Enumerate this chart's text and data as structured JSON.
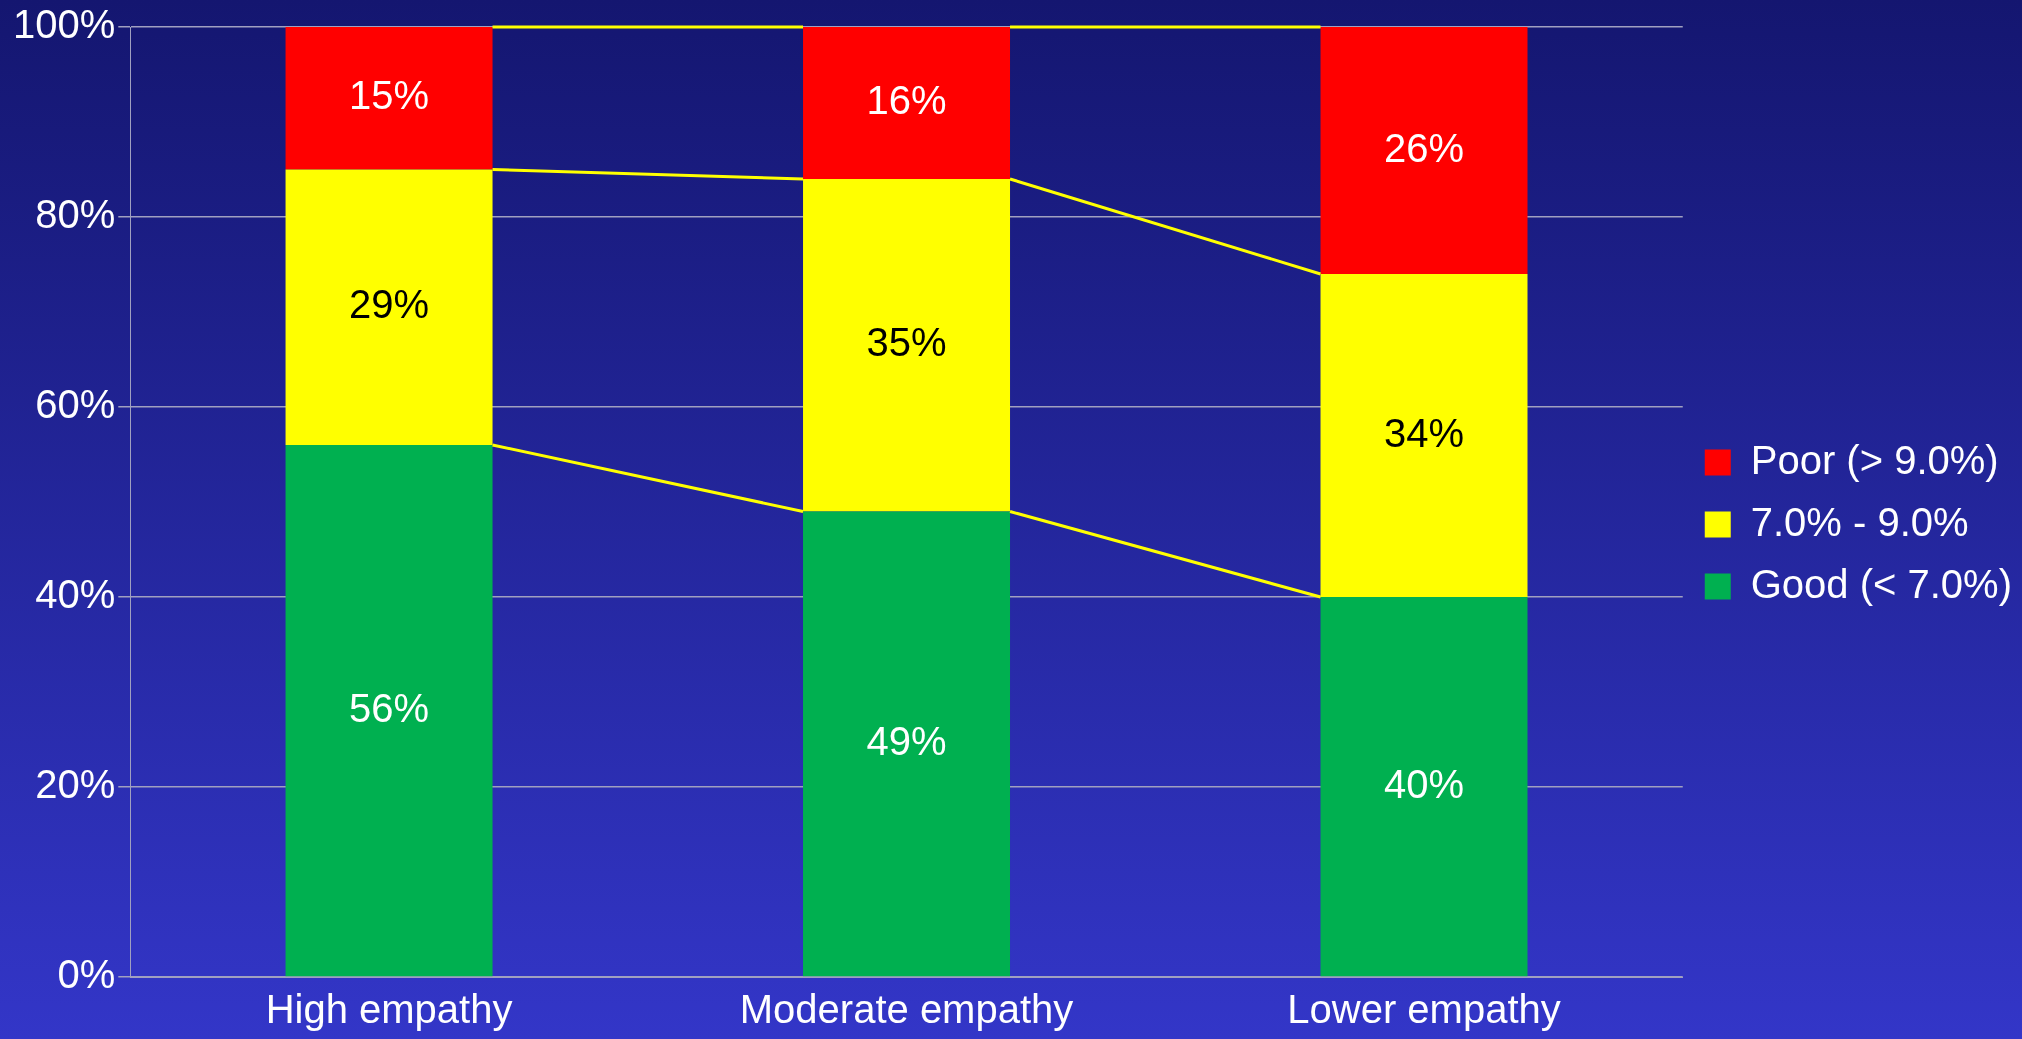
{
  "chart_data": {
    "type": "bar",
    "stacked": true,
    "categories": [
      "High empathy",
      "Moderate empathy",
      "Lower empathy"
    ],
    "series": [
      {
        "name": "Good (< 7.0%)",
        "color": "#00b050",
        "values": [
          56,
          49,
          40
        ],
        "value_labels": [
          "56%",
          "49%",
          "40%"
        ]
      },
      {
        "name": "7.0% - 9.0%",
        "color": "#ffff00",
        "values": [
          29,
          35,
          34
        ],
        "value_labels": [
          "29%",
          "35%",
          "34%"
        ]
      },
      {
        "name": "Poor (> 9.0%)",
        "color": "#ff0000",
        "values": [
          15,
          16,
          26
        ],
        "value_labels": [
          "15%",
          "16%",
          "26%"
        ]
      }
    ],
    "ylim": [
      0,
      100
    ],
    "yticks": [
      {
        "value": 0,
        "label": "0%"
      },
      {
        "value": 20,
        "label": "20%"
      },
      {
        "value": 40,
        "label": "40%"
      },
      {
        "value": 60,
        "label": "60%"
      },
      {
        "value": 80,
        "label": "80%"
      },
      {
        "value": 100,
        "label": "100%"
      }
    ],
    "grid": "y",
    "legend": "right"
  }
}
